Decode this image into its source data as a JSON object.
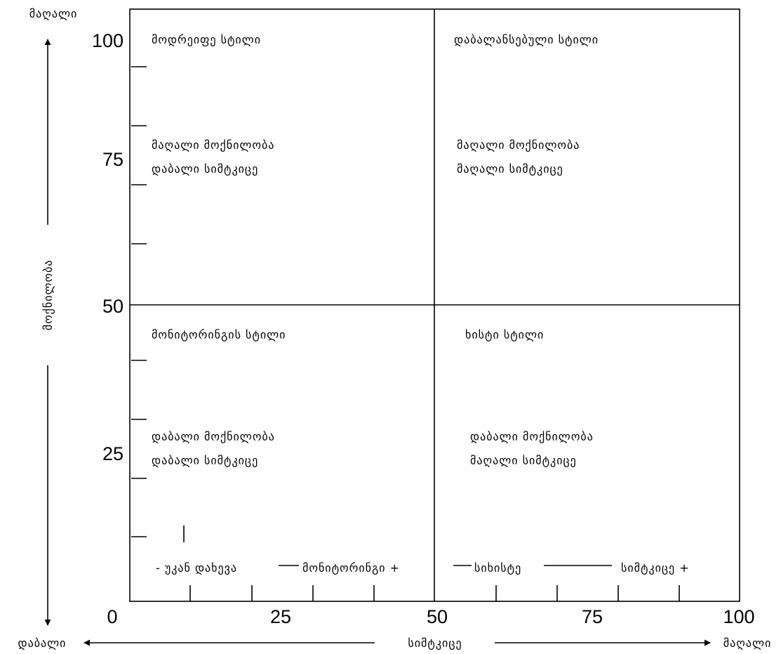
{
  "colors": {
    "background": "#ffffff",
    "ink": "#000000"
  },
  "axes": {
    "y": {
      "title": "მოქნილობა",
      "high_label": "მაღალი",
      "low_label": "დაბალი",
      "ticks": [
        "100",
        "75",
        "50",
        "25"
      ]
    },
    "x": {
      "title": "სიმტკიცე",
      "low_label": "დაბალი",
      "high_label": "მაღალი",
      "ticks": [
        "0",
        "25",
        "50",
        "75",
        "100"
      ]
    }
  },
  "quadrants": {
    "top_left": {
      "style": "მოდრეიფე სტილი",
      "flex": "მაღალი მოქნილობა",
      "firm": "დაბალი სიმტკიცე"
    },
    "top_right": {
      "style": "დაბალანსებული სტილი",
      "flex": "მაღალი მოქნილობა",
      "firm": "მაღალი სიმტკიცე"
    },
    "bottom_left": {
      "style": "მონიტორინგის სტილი",
      "flex": "დაბალი მოქნილობა",
      "firm": "დაბალი სიმტკიცე"
    },
    "bottom_right": {
      "style": "ხისტი სტილი",
      "flex": "დაბალი მოქნილობა",
      "firm": "მაღალი სიმტკიცე"
    }
  },
  "scale": {
    "retreat": "- უკან დახევა",
    "monitoring": "მონიტორინგი +",
    "rigidity": "სიხისტე",
    "firmness": "სიმტკიცე +"
  }
}
